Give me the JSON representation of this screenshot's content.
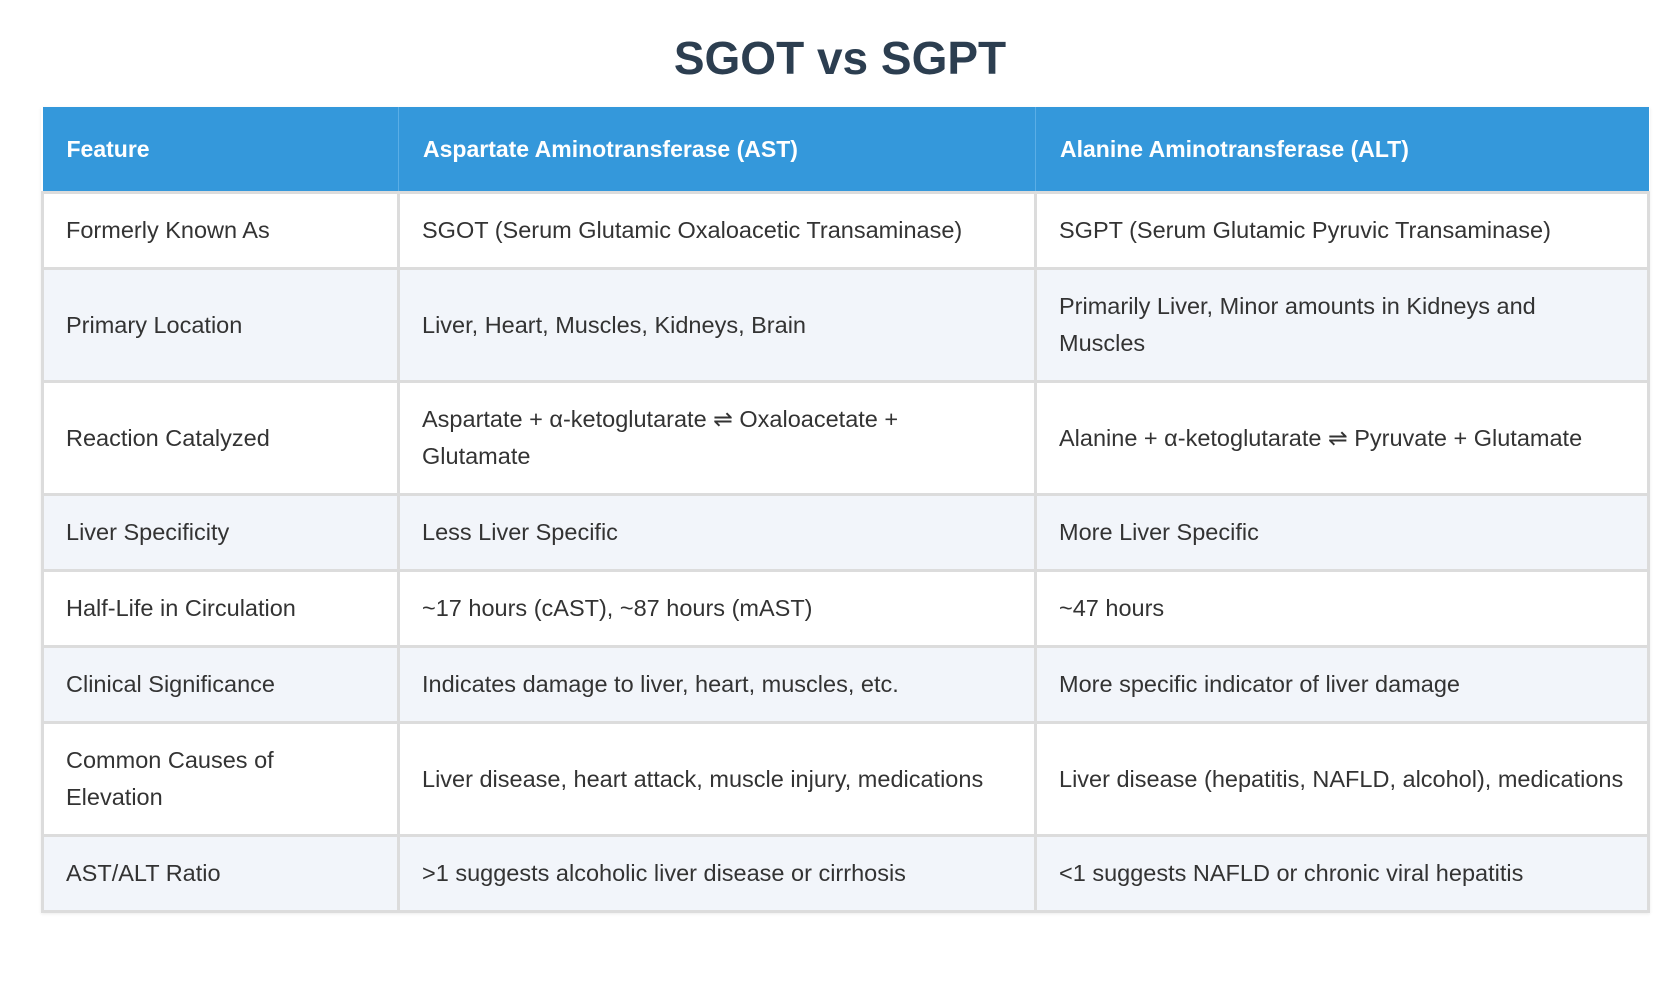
{
  "title": "SGOT vs SGPT",
  "colors": {
    "header_bg": "#3498db",
    "title": "#2c3e50",
    "alt_row": "#f2f5fa"
  },
  "table": {
    "headers": [
      "Feature",
      "Aspartate Aminotransferase (AST)",
      "Alanine Aminotransferase (ALT)"
    ],
    "rows": [
      [
        "Formerly Known As",
        "SGOT (Serum Glutamic Oxaloacetic Transaminase)",
        "SGPT (Serum Glutamic Pyruvic Transaminase)"
      ],
      [
        "Primary Location",
        "Liver, Heart, Muscles, Kidneys, Brain",
        "Primarily Liver, Minor amounts in Kidneys and Muscles"
      ],
      [
        "Reaction Catalyzed",
        "Aspartate + α-ketoglutarate ⇌ Oxaloacetate + Glutamate",
        "Alanine + α-ketoglutarate ⇌ Pyruvate + Glutamate"
      ],
      [
        "Liver Specificity",
        "Less Liver Specific",
        "More Liver Specific"
      ],
      [
        "Half-Life in Circulation",
        "~17 hours (cAST), ~87 hours (mAST)",
        "~47 hours"
      ],
      [
        "Clinical Significance",
        "Indicates damage to liver, heart, muscles, etc.",
        "More specific indicator of liver damage"
      ],
      [
        "Common Causes of Elevation",
        "Liver disease, heart attack, muscle injury, medications",
        "Liver disease (hepatitis, NAFLD, alcohol), medications"
      ],
      [
        "AST/ALT Ratio",
        ">1 suggests alcoholic liver disease or cirrhosis",
        "<1 suggests NAFLD or chronic viral hepatitis"
      ]
    ]
  }
}
